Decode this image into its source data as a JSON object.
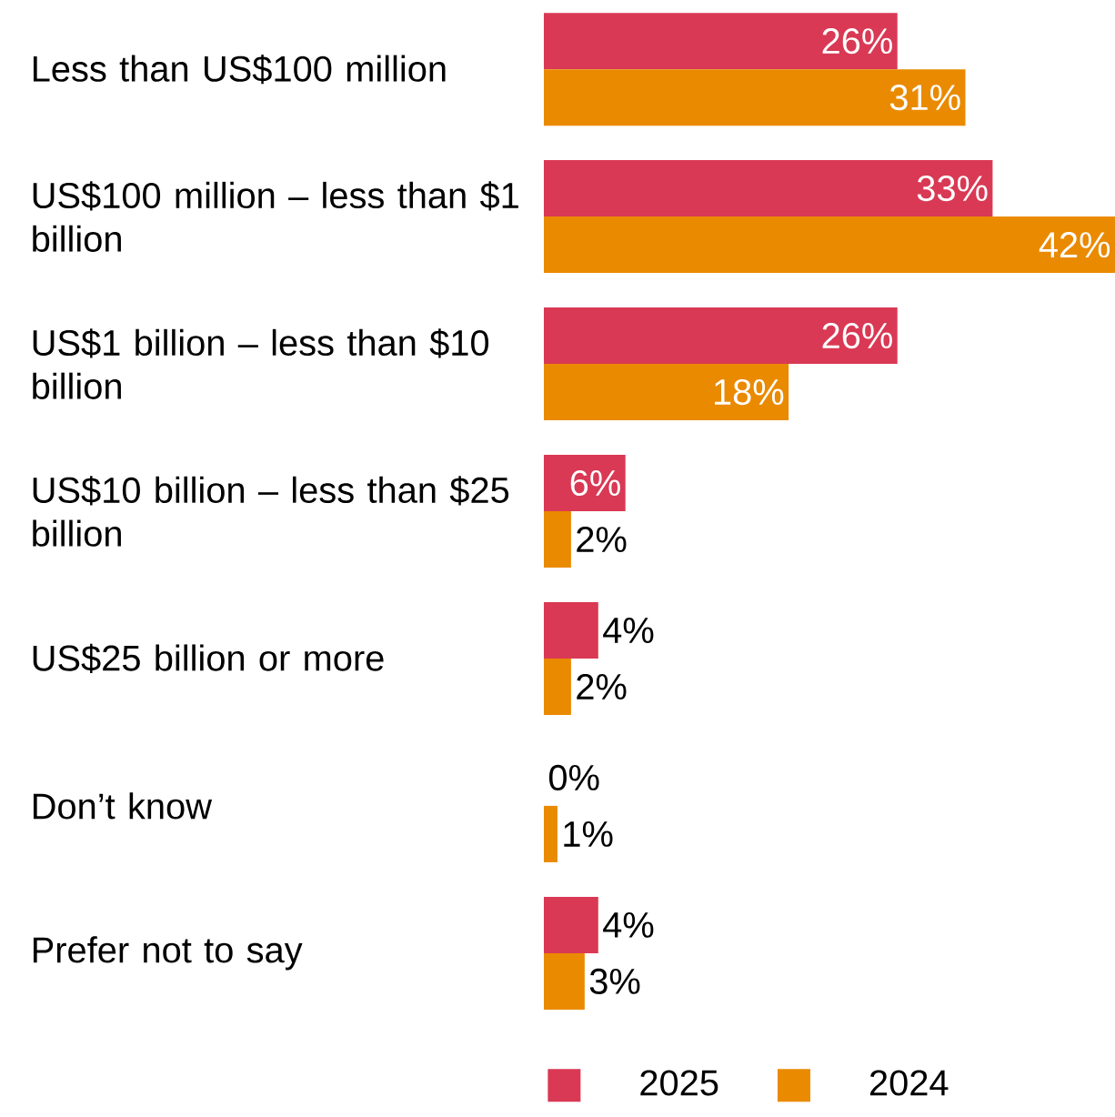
{
  "chart_data": {
    "type": "bar",
    "orientation": "horizontal",
    "legend": "bottom",
    "categories": [
      "Less than US$100 million",
      "US$100 million – less than $1 billion",
      "US$1 billion – less than $10 billion",
      "US$10 billion – less than $25 billion",
      "US$25 billion or more",
      "Don’t know",
      "Prefer not to say"
    ],
    "series": [
      {
        "name": "2025",
        "color": "#d93954",
        "values": [
          26,
          33,
          26,
          6,
          4,
          0,
          4
        ],
        "value_labels": [
          "26%",
          "33%",
          "26%",
          "6%",
          "4%",
          "0%",
          "4%"
        ]
      },
      {
        "name": "2024",
        "color": "#ea8a00",
        "values": [
          31,
          42,
          18,
          2,
          2,
          1,
          3
        ],
        "value_labels": [
          "31%",
          "42%",
          "18%",
          "2%",
          "2%",
          "1%",
          "3%"
        ]
      }
    ]
  }
}
